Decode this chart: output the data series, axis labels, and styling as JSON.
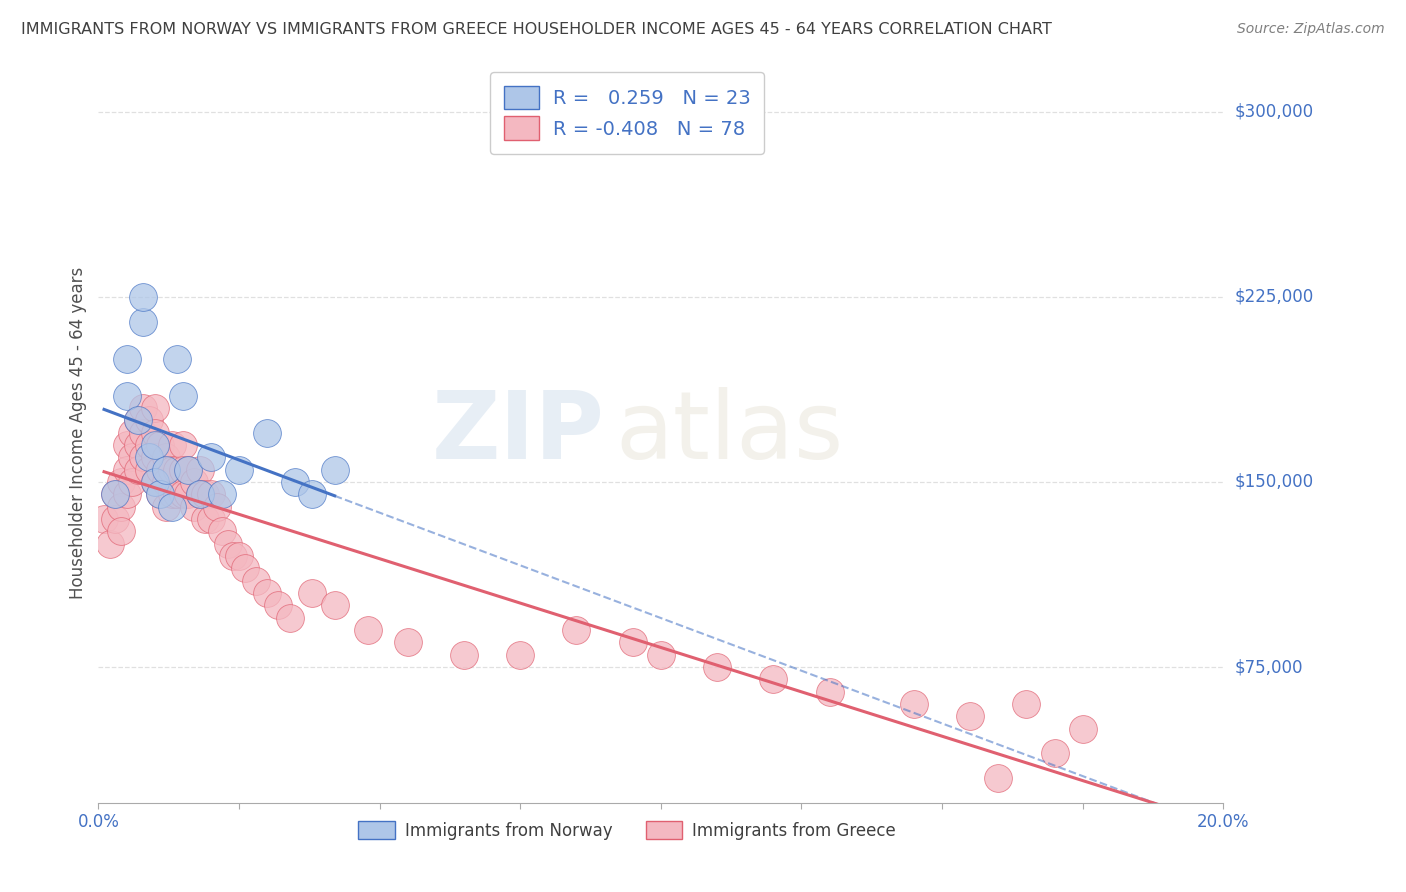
{
  "title": "IMMIGRANTS FROM NORWAY VS IMMIGRANTS FROM GREECE HOUSEHOLDER INCOME AGES 45 - 64 YEARS CORRELATION CHART",
  "source": "Source: ZipAtlas.com",
  "ylabel": "Householder Income Ages 45 - 64 years",
  "xlim": [
    0.0,
    0.2
  ],
  "ylim": [
    20000,
    320000
  ],
  "xticks": [
    0.0,
    0.025,
    0.05,
    0.075,
    0.1,
    0.125,
    0.15,
    0.175,
    0.2
  ],
  "ytick_positions": [
    75000,
    150000,
    225000,
    300000
  ],
  "ytick_labels": [
    "$75,000",
    "$150,000",
    "$225,000",
    "$300,000"
  ],
  "norway_R": 0.259,
  "norway_N": 23,
  "greece_R": -0.408,
  "greece_N": 78,
  "norway_color": "#aec6e8",
  "greece_color": "#f4b8c1",
  "norway_line_color": "#4472c4",
  "greece_line_color": "#e06070",
  "norway_scatter_x": [
    0.003,
    0.005,
    0.005,
    0.007,
    0.008,
    0.008,
    0.009,
    0.01,
    0.01,
    0.011,
    0.012,
    0.013,
    0.014,
    0.015,
    0.016,
    0.018,
    0.02,
    0.022,
    0.025,
    0.03,
    0.035,
    0.038,
    0.042
  ],
  "norway_scatter_y": [
    145000,
    185000,
    200000,
    175000,
    215000,
    225000,
    160000,
    150000,
    165000,
    145000,
    155000,
    140000,
    200000,
    185000,
    155000,
    145000,
    160000,
    145000,
    155000,
    170000,
    150000,
    145000,
    155000
  ],
  "greece_scatter_x": [
    0.001,
    0.002,
    0.003,
    0.003,
    0.004,
    0.004,
    0.004,
    0.005,
    0.005,
    0.005,
    0.006,
    0.006,
    0.006,
    0.007,
    0.007,
    0.007,
    0.008,
    0.008,
    0.008,
    0.009,
    0.009,
    0.009,
    0.01,
    0.01,
    0.01,
    0.01,
    0.011,
    0.011,
    0.011,
    0.012,
    0.012,
    0.012,
    0.013,
    0.013,
    0.013,
    0.014,
    0.014,
    0.015,
    0.015,
    0.015,
    0.016,
    0.016,
    0.017,
    0.017,
    0.018,
    0.018,
    0.019,
    0.019,
    0.02,
    0.02,
    0.021,
    0.022,
    0.023,
    0.024,
    0.025,
    0.026,
    0.028,
    0.03,
    0.032,
    0.034,
    0.038,
    0.042,
    0.048,
    0.055,
    0.065,
    0.075,
    0.085,
    0.095,
    0.1,
    0.11,
    0.12,
    0.13,
    0.145,
    0.16,
    0.155,
    0.165,
    0.175,
    0.17
  ],
  "greece_scatter_y": [
    135000,
    125000,
    145000,
    135000,
    150000,
    140000,
    130000,
    165000,
    155000,
    145000,
    170000,
    160000,
    150000,
    175000,
    165000,
    155000,
    180000,
    170000,
    160000,
    175000,
    165000,
    155000,
    180000,
    170000,
    160000,
    150000,
    165000,
    155000,
    145000,
    160000,
    150000,
    140000,
    165000,
    155000,
    145000,
    155000,
    145000,
    165000,
    155000,
    145000,
    155000,
    145000,
    150000,
    140000,
    155000,
    145000,
    145000,
    135000,
    145000,
    135000,
    140000,
    130000,
    125000,
    120000,
    120000,
    115000,
    110000,
    105000,
    100000,
    95000,
    105000,
    100000,
    90000,
    85000,
    80000,
    80000,
    90000,
    85000,
    80000,
    75000,
    70000,
    65000,
    60000,
    30000,
    55000,
    60000,
    50000,
    40000
  ],
  "watermark_zip": "ZIP",
  "watermark_atlas": "atlas",
  "background_color": "#ffffff",
  "grid_color": "#e0e0e0",
  "grid_style": "--",
  "title_color": "#404040",
  "source_color": "#808080",
  "axis_label_color": "#505050",
  "tick_color": "#4472c4",
  "legend_value_color": "#4472c4",
  "norway_line_x_start": 0.001,
  "norway_line_x_solid_end": 0.042,
  "norway_line_x_dash_end": 0.2,
  "greece_line_x_start": 0.001,
  "greece_line_x_end": 0.2
}
